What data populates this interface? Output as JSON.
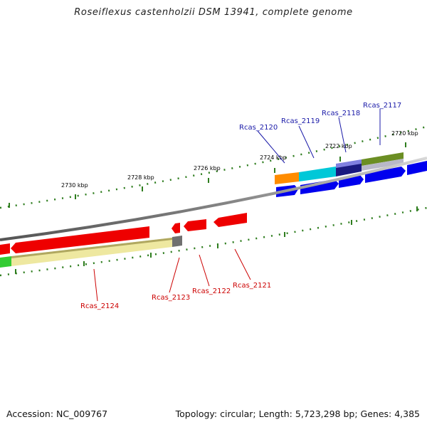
{
  "title": "Roseiflexus castenholzii DSM 13941, complete genome",
  "footer": {
    "accession": "Accession: NC_009767",
    "summary": "Topology: circular; Length: 5,723,298 bp; Genes: 4,385"
  },
  "colors": {
    "backbone": "#8a8a8a",
    "tick": "#2e7d1e",
    "label_forward": "#1a1aa8",
    "label_reverse": "#cc0000"
  },
  "ruler": [
    {
      "label": "2720 kbp"
    },
    {
      "label": "2722 kbp"
    },
    {
      "label": "2724 kbp"
    },
    {
      "label": "2726 kbp"
    },
    {
      "label": "2728 kbp"
    },
    {
      "label": "2730 kbp"
    }
  ],
  "labels": [
    {
      "text": "Rcas_2117",
      "strand": "forward"
    },
    {
      "text": "Rcas_2118",
      "strand": "forward"
    },
    {
      "text": "Rcas_2119",
      "strand": "forward"
    },
    {
      "text": "Rcas_2120",
      "strand": "forward"
    },
    {
      "text": "Rcas_2121",
      "strand": "reverse"
    },
    {
      "text": "Rcas_2122",
      "strand": "reverse"
    },
    {
      "text": "Rcas_2123",
      "strand": "reverse"
    },
    {
      "text": "Rcas_2124",
      "strand": "reverse"
    }
  ]
}
